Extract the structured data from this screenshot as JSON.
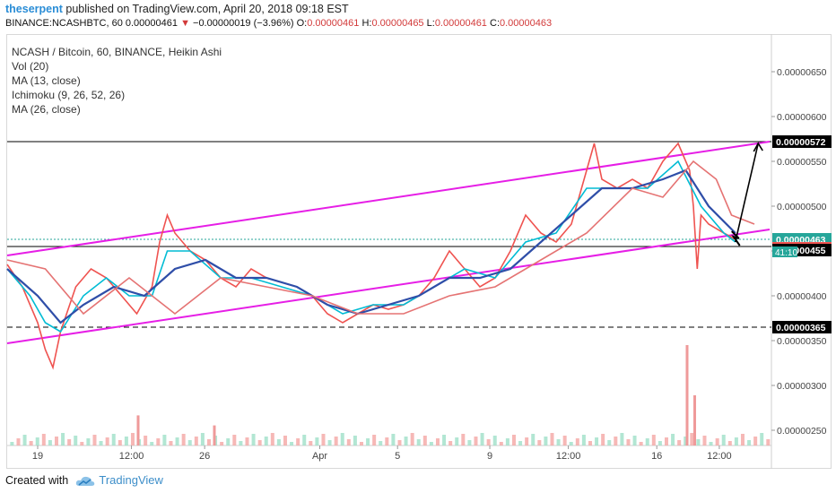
{
  "header": {
    "author": "theserpent",
    "published_text": "published on TradingView.com, April 20, 2018 09:18 EST",
    "symbol": "BINANCE:NCASHBTC, 60",
    "last": "0.00000461",
    "change_arrow": "▼",
    "change": "−0.00000019 (−3.96%)",
    "o_label": "O:",
    "o_value": "0.00000461",
    "h_label": "H:",
    "h_value": "0.00000465",
    "l_label": "L:",
    "l_value": "0.00000461",
    "c_label": "C:",
    "c_value": "0.00000463"
  },
  "legend": {
    "title": "NCASH / Bitcoin, 60, BINANCE, Heikin Ashi",
    "vol": "Vol (20)",
    "ma13": "MA (13, close)",
    "ichimoku": "Ichimoku (9, 26, 52, 26)",
    "ma26": "MA (26, close)"
  },
  "chart_data": {
    "type": "line",
    "title": "NCASH / Bitcoin, 60, BINANCE, Heikin Ashi",
    "ylim": [
      2.3e-06,
      6.9e-06
    ],
    "y_ticks": [
      2.5e-06,
      3e-06,
      3.5e-06,
      4e-06,
      4.5e-06,
      5e-06,
      5.5e-06,
      6e-06,
      6.5e-06
    ],
    "y_tick_labels": [
      "0.00000250",
      "0.00000300",
      "0.00000350",
      "0.00000400",
      "0.00000450",
      "0.00000500",
      "0.00000550",
      "0.00000600",
      "0.00000650"
    ],
    "x_tick_labels": [
      "19",
      "12:00",
      "26",
      "Apr",
      "5",
      "9",
      "12:00",
      "16",
      "12:00"
    ],
    "x_tick_pos": [
      0.04,
      0.163,
      0.259,
      0.41,
      0.512,
      0.633,
      0.736,
      0.852,
      0.934
    ],
    "price_labels": [
      {
        "text": "0.00000572",
        "value": 5.72e-06,
        "style": "resistance"
      },
      {
        "text": "0.00000463",
        "value": 4.63e-06,
        "style": "last"
      },
      {
        "text": "0.00000461",
        "value": 4.61e-06,
        "style": "open"
      },
      {
        "text": "0.00000455",
        "value": 4.55e-06,
        "style": "support"
      },
      {
        "text": "0.00000365",
        "value": 3.65e-06,
        "style": "dashed"
      }
    ],
    "countdown": "41:10",
    "horizontal_lines": [
      {
        "value": 5.72e-06,
        "style": "solid",
        "color": "#000000"
      },
      {
        "value": 4.55e-06,
        "style": "solid",
        "color": "#000000"
      },
      {
        "value": 3.65e-06,
        "style": "dashed",
        "color": "#000000"
      },
      {
        "value": 4.63e-06,
        "style": "dotted",
        "color": "#26a69a"
      }
    ],
    "channel": {
      "color": "#e61ee6",
      "upper": [
        [
          0.0,
          4.45e-06
        ],
        [
          1.0,
          5.72e-06
        ]
      ],
      "lower": [
        [
          0.0,
          3.47e-06
        ],
        [
          1.0,
          4.74e-06
        ]
      ]
    },
    "series": [
      {
        "name": "Price",
        "color": "#ef5350",
        "values": [
          [
            0.0,
            4.35e-06
          ],
          [
            0.02,
            4.1e-06
          ],
          [
            0.04,
            3.7e-06
          ],
          [
            0.05,
            3.4e-06
          ],
          [
            0.06,
            3.2e-06
          ],
          [
            0.07,
            3.6e-06
          ],
          [
            0.09,
            4.1e-06
          ],
          [
            0.11,
            4.3e-06
          ],
          [
            0.13,
            4.2e-06
          ],
          [
            0.15,
            4e-06
          ],
          [
            0.17,
            3.8e-06
          ],
          [
            0.19,
            4.1e-06
          ],
          [
            0.2,
            4.6e-06
          ],
          [
            0.21,
            4.9e-06
          ],
          [
            0.22,
            4.7e-06
          ],
          [
            0.24,
            4.5e-06
          ],
          [
            0.26,
            4.4e-06
          ],
          [
            0.28,
            4.2e-06
          ],
          [
            0.3,
            4.1e-06
          ],
          [
            0.32,
            4.3e-06
          ],
          [
            0.34,
            4.2e-06
          ],
          [
            0.36,
            4.15e-06
          ],
          [
            0.38,
            4.1e-06
          ],
          [
            0.4,
            4e-06
          ],
          [
            0.42,
            3.8e-06
          ],
          [
            0.44,
            3.7e-06
          ],
          [
            0.46,
            3.8e-06
          ],
          [
            0.48,
            3.9e-06
          ],
          [
            0.5,
            3.85e-06
          ],
          [
            0.52,
            3.9e-06
          ],
          [
            0.54,
            4e-06
          ],
          [
            0.56,
            4.2e-06
          ],
          [
            0.58,
            4.5e-06
          ],
          [
            0.6,
            4.3e-06
          ],
          [
            0.62,
            4.1e-06
          ],
          [
            0.64,
            4.2e-06
          ],
          [
            0.66,
            4.5e-06
          ],
          [
            0.68,
            4.9e-06
          ],
          [
            0.7,
            4.7e-06
          ],
          [
            0.72,
            4.6e-06
          ],
          [
            0.74,
            4.8e-06
          ],
          [
            0.76,
            5.4e-06
          ],
          [
            0.77,
            5.7e-06
          ],
          [
            0.78,
            5.3e-06
          ],
          [
            0.8,
            5.2e-06
          ],
          [
            0.82,
            5.3e-06
          ],
          [
            0.84,
            5.2e-06
          ],
          [
            0.86,
            5.5e-06
          ],
          [
            0.88,
            5.7e-06
          ],
          [
            0.895,
            5.4e-06
          ],
          [
            0.9,
            5e-06
          ],
          [
            0.905,
            4.3e-06
          ],
          [
            0.91,
            4.9e-06
          ],
          [
            0.92,
            4.8e-06
          ],
          [
            0.94,
            4.7e-06
          ],
          [
            0.955,
            4.63e-06
          ]
        ]
      },
      {
        "name": "MA (13, close)",
        "color": "#00bcd4",
        "values": [
          [
            0.0,
            4.3e-06
          ],
          [
            0.03,
            4e-06
          ],
          [
            0.05,
            3.7e-06
          ],
          [
            0.07,
            3.6e-06
          ],
          [
            0.1,
            4e-06
          ],
          [
            0.13,
            4.2e-06
          ],
          [
            0.16,
            4e-06
          ],
          [
            0.19,
            4e-06
          ],
          [
            0.21,
            4.5e-06
          ],
          [
            0.24,
            4.5e-06
          ],
          [
            0.28,
            4.2e-06
          ],
          [
            0.32,
            4.2e-06
          ],
          [
            0.36,
            4.1e-06
          ],
          [
            0.4,
            4e-06
          ],
          [
            0.44,
            3.8e-06
          ],
          [
            0.48,
            3.9e-06
          ],
          [
            0.52,
            3.9e-06
          ],
          [
            0.56,
            4.1e-06
          ],
          [
            0.6,
            4.3e-06
          ],
          [
            0.64,
            4.2e-06
          ],
          [
            0.68,
            4.6e-06
          ],
          [
            0.72,
            4.7e-06
          ],
          [
            0.76,
            5.2e-06
          ],
          [
            0.8,
            5.2e-06
          ],
          [
            0.84,
            5.2e-06
          ],
          [
            0.88,
            5.5e-06
          ],
          [
            0.91,
            5e-06
          ],
          [
            0.94,
            4.7e-06
          ],
          [
            0.955,
            4.6e-06
          ]
        ]
      },
      {
        "name": "MA (26, close)",
        "color": "#2f4ea8",
        "values": [
          [
            0.0,
            4.3e-06
          ],
          [
            0.04,
            4e-06
          ],
          [
            0.07,
            3.7e-06
          ],
          [
            0.1,
            3.9e-06
          ],
          [
            0.14,
            4.1e-06
          ],
          [
            0.18,
            4e-06
          ],
          [
            0.22,
            4.3e-06
          ],
          [
            0.26,
            4.4e-06
          ],
          [
            0.3,
            4.2e-06
          ],
          [
            0.34,
            4.2e-06
          ],
          [
            0.38,
            4.1e-06
          ],
          [
            0.42,
            3.9e-06
          ],
          [
            0.46,
            3.8e-06
          ],
          [
            0.5,
            3.9e-06
          ],
          [
            0.54,
            4e-06
          ],
          [
            0.58,
            4.2e-06
          ],
          [
            0.62,
            4.2e-06
          ],
          [
            0.66,
            4.3e-06
          ],
          [
            0.7,
            4.6e-06
          ],
          [
            0.74,
            4.9e-06
          ],
          [
            0.78,
            5.2e-06
          ],
          [
            0.82,
            5.2e-06
          ],
          [
            0.86,
            5.3e-06
          ],
          [
            0.89,
            5.4e-06
          ],
          [
            0.92,
            5e-06
          ],
          [
            0.955,
            4.7e-06
          ]
        ]
      },
      {
        "name": "Ichimoku",
        "color": "#e57373",
        "values": [
          [
            0.0,
            4.4e-06
          ],
          [
            0.05,
            4.3e-06
          ],
          [
            0.1,
            3.8e-06
          ],
          [
            0.16,
            4.2e-06
          ],
          [
            0.22,
            3.8e-06
          ],
          [
            0.28,
            4.2e-06
          ],
          [
            0.34,
            4.1e-06
          ],
          [
            0.4,
            4e-06
          ],
          [
            0.46,
            3.8e-06
          ],
          [
            0.52,
            3.8e-06
          ],
          [
            0.58,
            4e-06
          ],
          [
            0.64,
            4.1e-06
          ],
          [
            0.7,
            4.4e-06
          ],
          [
            0.76,
            4.7e-06
          ],
          [
            0.82,
            5.2e-06
          ],
          [
            0.86,
            5.1e-06
          ],
          [
            0.9,
            5.5e-06
          ],
          [
            0.93,
            5.3e-06
          ],
          [
            0.95,
            4.9e-06
          ],
          [
            0.98,
            4.8e-06
          ]
        ]
      }
    ],
    "volume_spikes": [
      [
        0.17,
        0.3
      ],
      [
        0.27,
        0.2
      ],
      [
        0.89,
        1.0
      ],
      [
        0.9,
        0.5
      ]
    ],
    "arrow": {
      "from": [
        0.955,
        4.6e-06
      ],
      "to": [
        0.985,
        5.7e-06
      ]
    }
  },
  "footer": {
    "created_with": "Created with",
    "brand": "TradingView"
  }
}
